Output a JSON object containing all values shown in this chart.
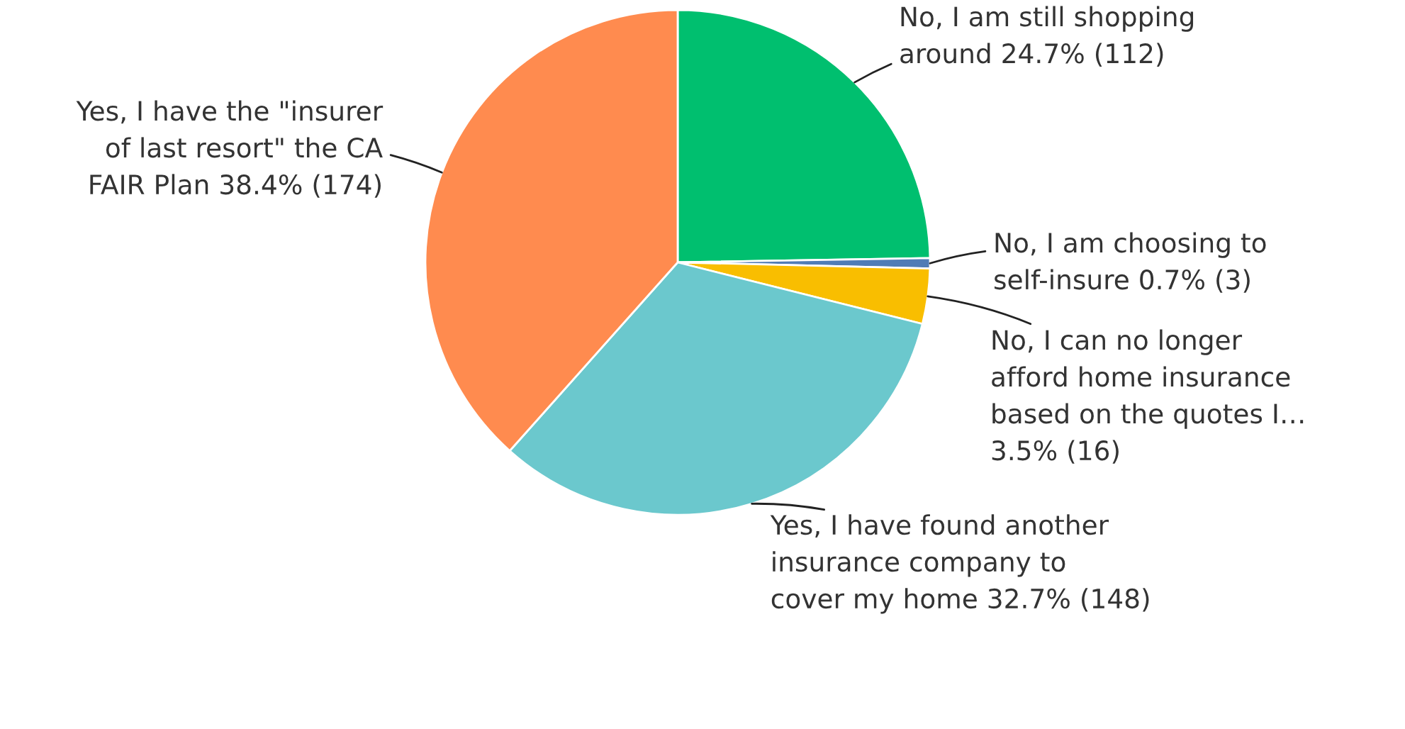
{
  "chart_data": {
    "type": "pie",
    "categories": [
      "No, I am still shopping around",
      "No, I am choosing to self-insure",
      "No, I can no longer afford home insurance based on the quotes I…",
      "Yes, I have found another insurance company to cover my home",
      "Yes, I have the \"insurer of last resort\" the CA FAIR Plan"
    ],
    "values": [
      112,
      3,
      16,
      148,
      174
    ],
    "value_labels": [
      "24.7% (112)",
      "0.7% (3)",
      "3.5% (16)",
      "32.7% (148)",
      "38.4% (174)"
    ],
    "colors": [
      "#00bf6f",
      "#507cb6",
      "#f9be00",
      "#6bc8cd",
      "#ff8b4f"
    ]
  }
}
